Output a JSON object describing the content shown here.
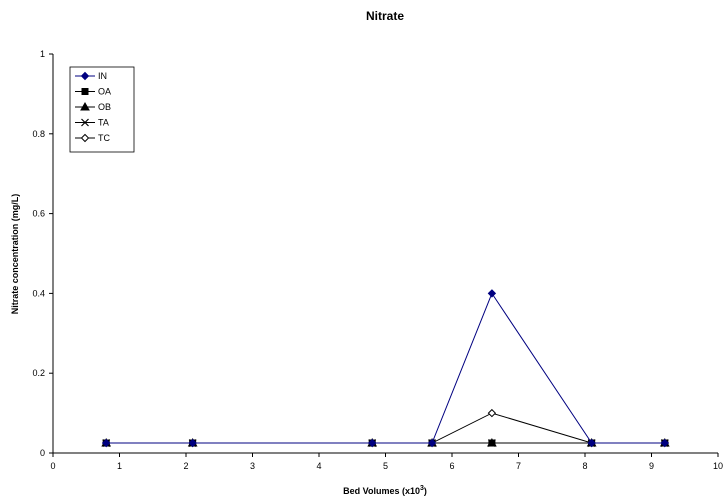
{
  "chart_data": {
    "type": "line",
    "title": "Nitrate",
    "xlabel": "Bed Volumes (x10",
    "xlabel_sup": "3",
    "xlabel_close": ")",
    "ylabel": "Nitrate concentration (mg/L)",
    "xlim": [
      0,
      10
    ],
    "ylim": [
      0,
      1
    ],
    "xticks": [
      "0",
      "1",
      "2",
      "3",
      "4",
      "5",
      "6",
      "7",
      "8",
      "9",
      "10"
    ],
    "yticks": [
      "0",
      "0.2",
      "0.4",
      "0.6",
      "0.8",
      "1"
    ],
    "grid": false,
    "legend_position": "top-left",
    "series": [
      {
        "name": "IN",
        "color": "#000080",
        "marker": "diamond-filled",
        "x": [
          0.8,
          2.1,
          4.8,
          5.7,
          6.6,
          8.1,
          9.2
        ],
        "y": [
          0.025,
          0.025,
          0.025,
          0.025,
          0.4,
          0.025,
          0.025
        ]
      },
      {
        "name": "OA",
        "color": "#000000",
        "marker": "square-filled",
        "x": [
          0.8,
          2.1,
          4.8,
          5.7,
          6.6,
          8.1,
          9.2
        ],
        "y": [
          0.025,
          0.025,
          0.025,
          0.025,
          0.025,
          0.025,
          0.025
        ]
      },
      {
        "name": "OB",
        "color": "#000000",
        "marker": "triangle-filled",
        "x": [
          0.8,
          2.1,
          4.8,
          5.7,
          6.6,
          8.1,
          9.2
        ],
        "y": [
          0.025,
          0.025,
          0.025,
          0.025,
          0.025,
          0.025,
          0.025
        ]
      },
      {
        "name": "TA",
        "color": "#000000",
        "marker": "x",
        "x": [
          0.8,
          2.1,
          4.8,
          5.7,
          6.6,
          8.1,
          9.2
        ],
        "y": [
          0.025,
          0.025,
          0.025,
          0.025,
          0.025,
          0.025,
          0.025
        ]
      },
      {
        "name": "TC",
        "color": "#000000",
        "marker": "diamond-open",
        "x": [
          0.8,
          2.1,
          4.8,
          5.7,
          6.6,
          8.1,
          9.2
        ],
        "y": [
          0.025,
          0.025,
          0.025,
          0.025,
          0.1,
          0.025,
          0.025
        ]
      }
    ]
  }
}
